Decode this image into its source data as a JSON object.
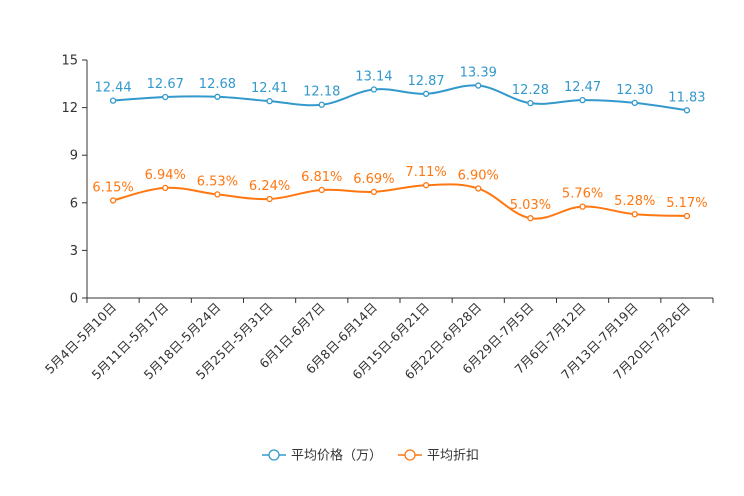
{
  "chart_data": {
    "type": "line",
    "title": "",
    "xlabel": "",
    "ylabel": "",
    "ylim": [
      0,
      15
    ],
    "yticks": [
      0,
      3,
      6,
      9,
      12,
      15
    ],
    "grid": false,
    "legend_position": "bottom-center",
    "categories": [
      "5月4日-5月10日",
      "5月11日-5月17日",
      "5月18日-5月24日",
      "5月25日-5月31日",
      "6月1日-6月7日",
      "6月8日-6月14日",
      "6月15日-6月21日",
      "6月22日-6月28日",
      "6月29日-7月5日",
      "7月6日-7月12日",
      "7月13日-7月19日",
      "7月20日-7月26日"
    ],
    "series": [
      {
        "name": "平均价格（万）",
        "color": "#3399cc",
        "values": [
          12.44,
          12.67,
          12.68,
          12.41,
          12.18,
          13.14,
          12.87,
          13.39,
          12.28,
          12.47,
          12.3,
          11.83
        ],
        "labels": [
          "12.44",
          "12.67",
          "12.68",
          "12.41",
          "12.18",
          "13.14",
          "12.87",
          "13.39",
          "12.28",
          "12.47",
          "12.30",
          "11.83"
        ]
      },
      {
        "name": "平均折扣",
        "color": "#ff7711",
        "values": [
          6.15,
          6.94,
          6.53,
          6.24,
          6.81,
          6.69,
          7.11,
          6.9,
          5.03,
          5.76,
          5.28,
          5.17
        ],
        "labels": [
          "6.15%",
          "6.94%",
          "6.53%",
          "6.24%",
          "6.81%",
          "6.69%",
          "7.11%",
          "6.90%",
          "5.03%",
          "5.76%",
          "5.28%",
          "5.17%"
        ]
      }
    ]
  }
}
